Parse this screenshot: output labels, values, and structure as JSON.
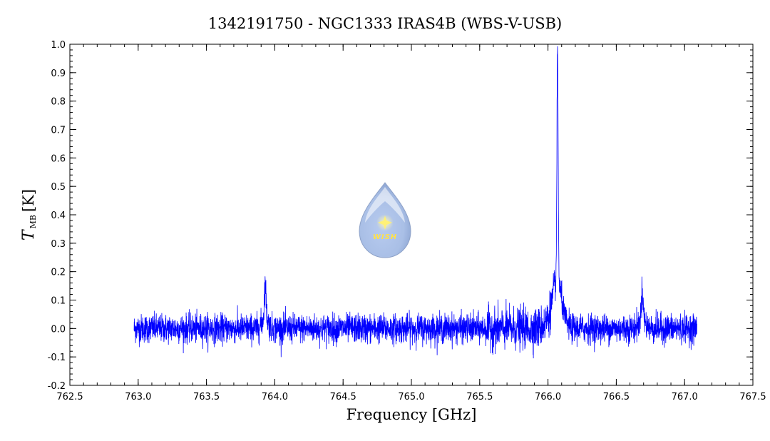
{
  "chart_data": {
    "type": "line",
    "title": "1342191750 - NGC1333 IRAS4B (WBS-V-USB)",
    "xlabel": "Frequency [GHz]",
    "ylabel_symbol": "T",
    "ylabel_subscript": "MB",
    "ylabel_unit": "[K]",
    "xlim": [
      762.5,
      767.5
    ],
    "ylim": [
      -0.2,
      1.0
    ],
    "xticks": [
      "762.5",
      "763.0",
      "763.5",
      "764.0",
      "764.5",
      "765.0",
      "765.5",
      "766.0",
      "766.5",
      "767.0",
      "767.5"
    ],
    "yticks": [
      "-0.2",
      "-0.1",
      "0.0",
      "0.1",
      "0.2",
      "0.3",
      "0.4",
      "0.5",
      "0.6",
      "0.7",
      "0.8",
      "0.9",
      "1.0"
    ],
    "grid": false,
    "legend": "none",
    "series": [
      {
        "color": "#0000ff",
        "x_range": [
          762.97,
          767.09
        ],
        "baseline": 0.0,
        "noise_rms": 0.025,
        "lines": [
          {
            "center": 763.93,
            "peak": 0.17
          },
          {
            "center": 766.07,
            "peak": 0.93
          },
          {
            "center": 766.69,
            "peak": 0.15
          }
        ]
      }
    ],
    "logo_text": "WISH"
  }
}
